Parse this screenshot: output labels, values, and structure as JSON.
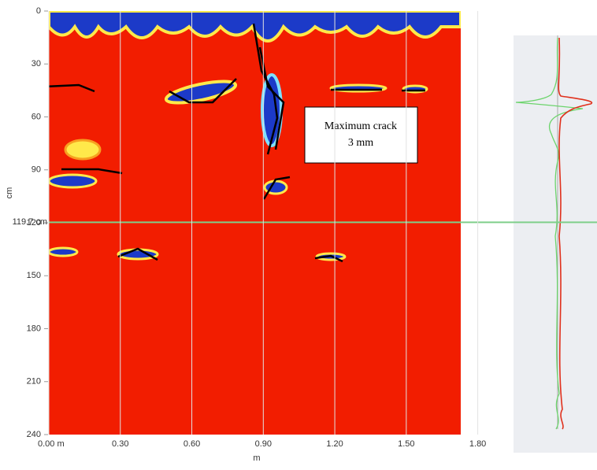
{
  "chart_data": {
    "type": "radargram",
    "x_label": "m",
    "y_label": "cm",
    "xlim": [
      0,
      1.95
    ],
    "ylim": [
      0,
      240
    ],
    "xticks": [
      {
        "value": 0,
        "label": "0.00 m"
      },
      {
        "value": 0.3,
        "label": "0.30"
      },
      {
        "value": 0.6,
        "label": "0.60"
      },
      {
        "value": 0.9,
        "label": "0.90"
      },
      {
        "value": 1.2,
        "label": "1.20"
      },
      {
        "value": 1.5,
        "label": "1.50"
      },
      {
        "value": 1.8,
        "label": "1.80"
      }
    ],
    "yticks": [
      0,
      30,
      60,
      90,
      120,
      150,
      180,
      210,
      240
    ],
    "marker": {
      "value": 119.7,
      "label": "119.7 cm"
    },
    "annotation": [
      "Maximum crack",
      "3 mm"
    ]
  }
}
